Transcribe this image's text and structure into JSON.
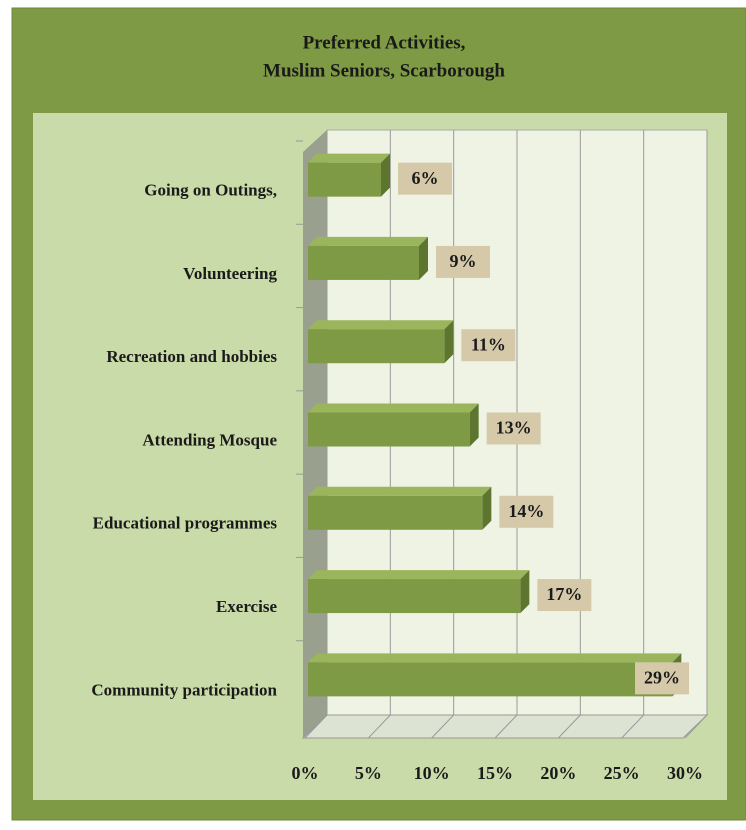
{
  "chart_data": {
    "type": "bar",
    "orientation": "horizontal",
    "title": [
      "Preferred Activities,",
      "Muslim Seniors, Scarborough"
    ],
    "categories": [
      "Going on Outings,",
      "Volunteering",
      "Recreation and hobbies",
      "Attending Mosque",
      "Educational programmes",
      "Exercise",
      "Community participation"
    ],
    "values": [
      6,
      9,
      11,
      13,
      14,
      17,
      29
    ],
    "value_labels": [
      "6%",
      "9%",
      "11%",
      "13%",
      "14%",
      "17%",
      "29%"
    ],
    "color": "#7f9a45",
    "xlim": [
      0,
      30
    ],
    "xticks": [
      {
        "value": 0,
        "label": "0%"
      },
      {
        "value": 5,
        "label": "5%"
      },
      {
        "value": 10,
        "label": "10%"
      },
      {
        "value": 15,
        "label": "15%"
      },
      {
        "value": 20,
        "label": "20%"
      },
      {
        "value": 25,
        "label": "25%"
      },
      {
        "value": 30,
        "label": "30%"
      }
    ],
    "grid": true
  }
}
